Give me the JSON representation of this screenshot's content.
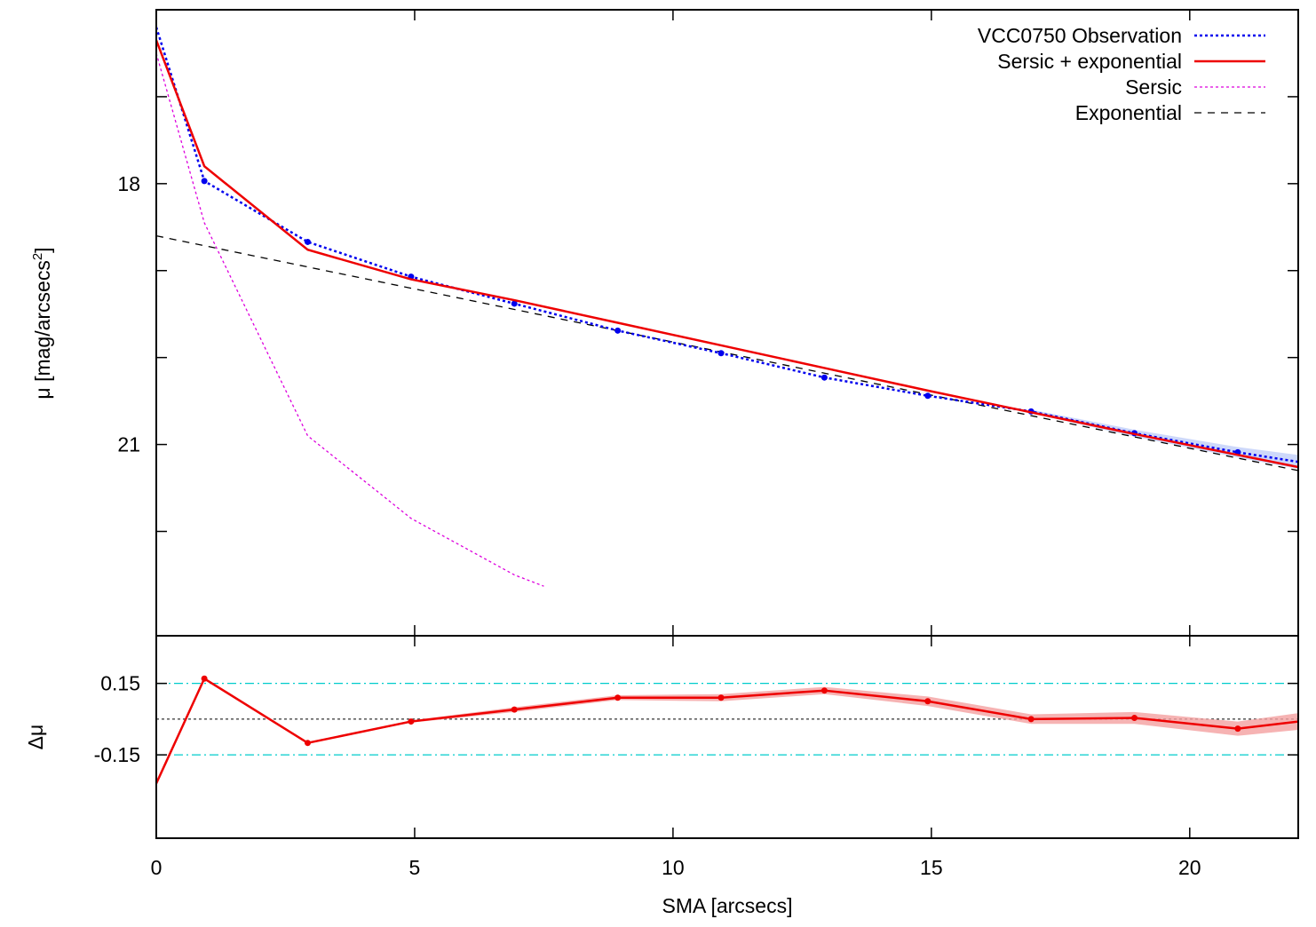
{
  "chart_data": [
    {
      "type": "line",
      "panel": "profile",
      "xlabel": "SMA [arcsecs]",
      "ylabel": "μ [mag/arcsecs",
      "ylabel_sup": "2",
      "ylabel_close": "]",
      "xlim": [
        0,
        22.1
      ],
      "ylim": [
        16.0,
        23.2
      ],
      "y_inverted": true,
      "xticks": [
        0,
        5,
        10,
        15,
        20
      ],
      "yticks": [
        17,
        18,
        19,
        20,
        21,
        22
      ],
      "ytick_labels": [
        "",
        "18",
        "",
        "",
        "21",
        ""
      ],
      "legend_position": "top-right",
      "series": [
        {
          "name": "VCC0750 Observation",
          "style": "dotted-with-points",
          "color": "#0000ee",
          "x": [
            0,
            0.93,
            2.93,
            4.93,
            6.93,
            8.93,
            10.93,
            12.93,
            14.93,
            16.93,
            18.93,
            20.93,
            22.1
          ],
          "y": [
            16.2,
            17.97,
            18.67,
            19.07,
            19.38,
            19.69,
            19.95,
            20.23,
            20.44,
            20.62,
            20.87,
            21.09,
            21.2
          ]
        },
        {
          "name": "Sersic + exponential",
          "style": "solid",
          "color": "#ee0000",
          "x": [
            0,
            0.93,
            2.93,
            4.93,
            6.93,
            8.93,
            10.93,
            12.93,
            14.93,
            16.93,
            18.93,
            20.93,
            22.1
          ],
          "y": [
            16.35,
            17.8,
            18.76,
            19.1,
            19.34,
            19.6,
            19.86,
            20.12,
            20.38,
            20.63,
            20.88,
            21.12,
            21.26
          ]
        },
        {
          "name": "Sersic",
          "style": "dotted",
          "color": "#dd00dd",
          "x": [
            0,
            0.93,
            2.93,
            4.93,
            6.93,
            7.5
          ],
          "y": [
            16.5,
            18.45,
            20.9,
            21.85,
            22.5,
            22.63
          ]
        },
        {
          "name": "Exponential",
          "style": "dashed",
          "color": "#000000",
          "x": [
            0,
            22.1
          ],
          "y": [
            18.6,
            21.3
          ]
        }
      ]
    },
    {
      "type": "line",
      "panel": "residual",
      "xlabel": "SMA [arcsecs]",
      "ylabel": "Δμ",
      "xlim": [
        0,
        22.1
      ],
      "ylim": [
        -0.5,
        0.35
      ],
      "yticks": [
        0.15,
        -0.15
      ],
      "ytick_labels": [
        "0.15",
        "-0.15"
      ],
      "reference_lines": [
        {
          "y": 0.15,
          "style": "dash-dot",
          "color": "#00cccc"
        },
        {
          "y": 0.0,
          "style": "dotted",
          "color": "#000000"
        },
        {
          "y": -0.15,
          "style": "dash-dot",
          "color": "#00cccc"
        }
      ],
      "series": [
        {
          "style": "solid-with-points",
          "color": "#ee0000",
          "band_color": "#f4a0a0",
          "x": [
            0,
            0.93,
            2.93,
            4.93,
            6.93,
            8.93,
            10.93,
            12.93,
            14.93,
            16.93,
            18.93,
            20.93,
            22.1
          ],
          "y": [
            -0.27,
            0.17,
            -0.1,
            -0.01,
            0.04,
            0.09,
            0.09,
            0.12,
            0.075,
            0.0,
            0.005,
            -0.04,
            -0.01
          ],
          "err": [
            0,
            0,
            0,
            0.005,
            0.01,
            0.01,
            0.015,
            0.015,
            0.02,
            0.02,
            0.025,
            0.03,
            0.035
          ]
        }
      ]
    }
  ]
}
